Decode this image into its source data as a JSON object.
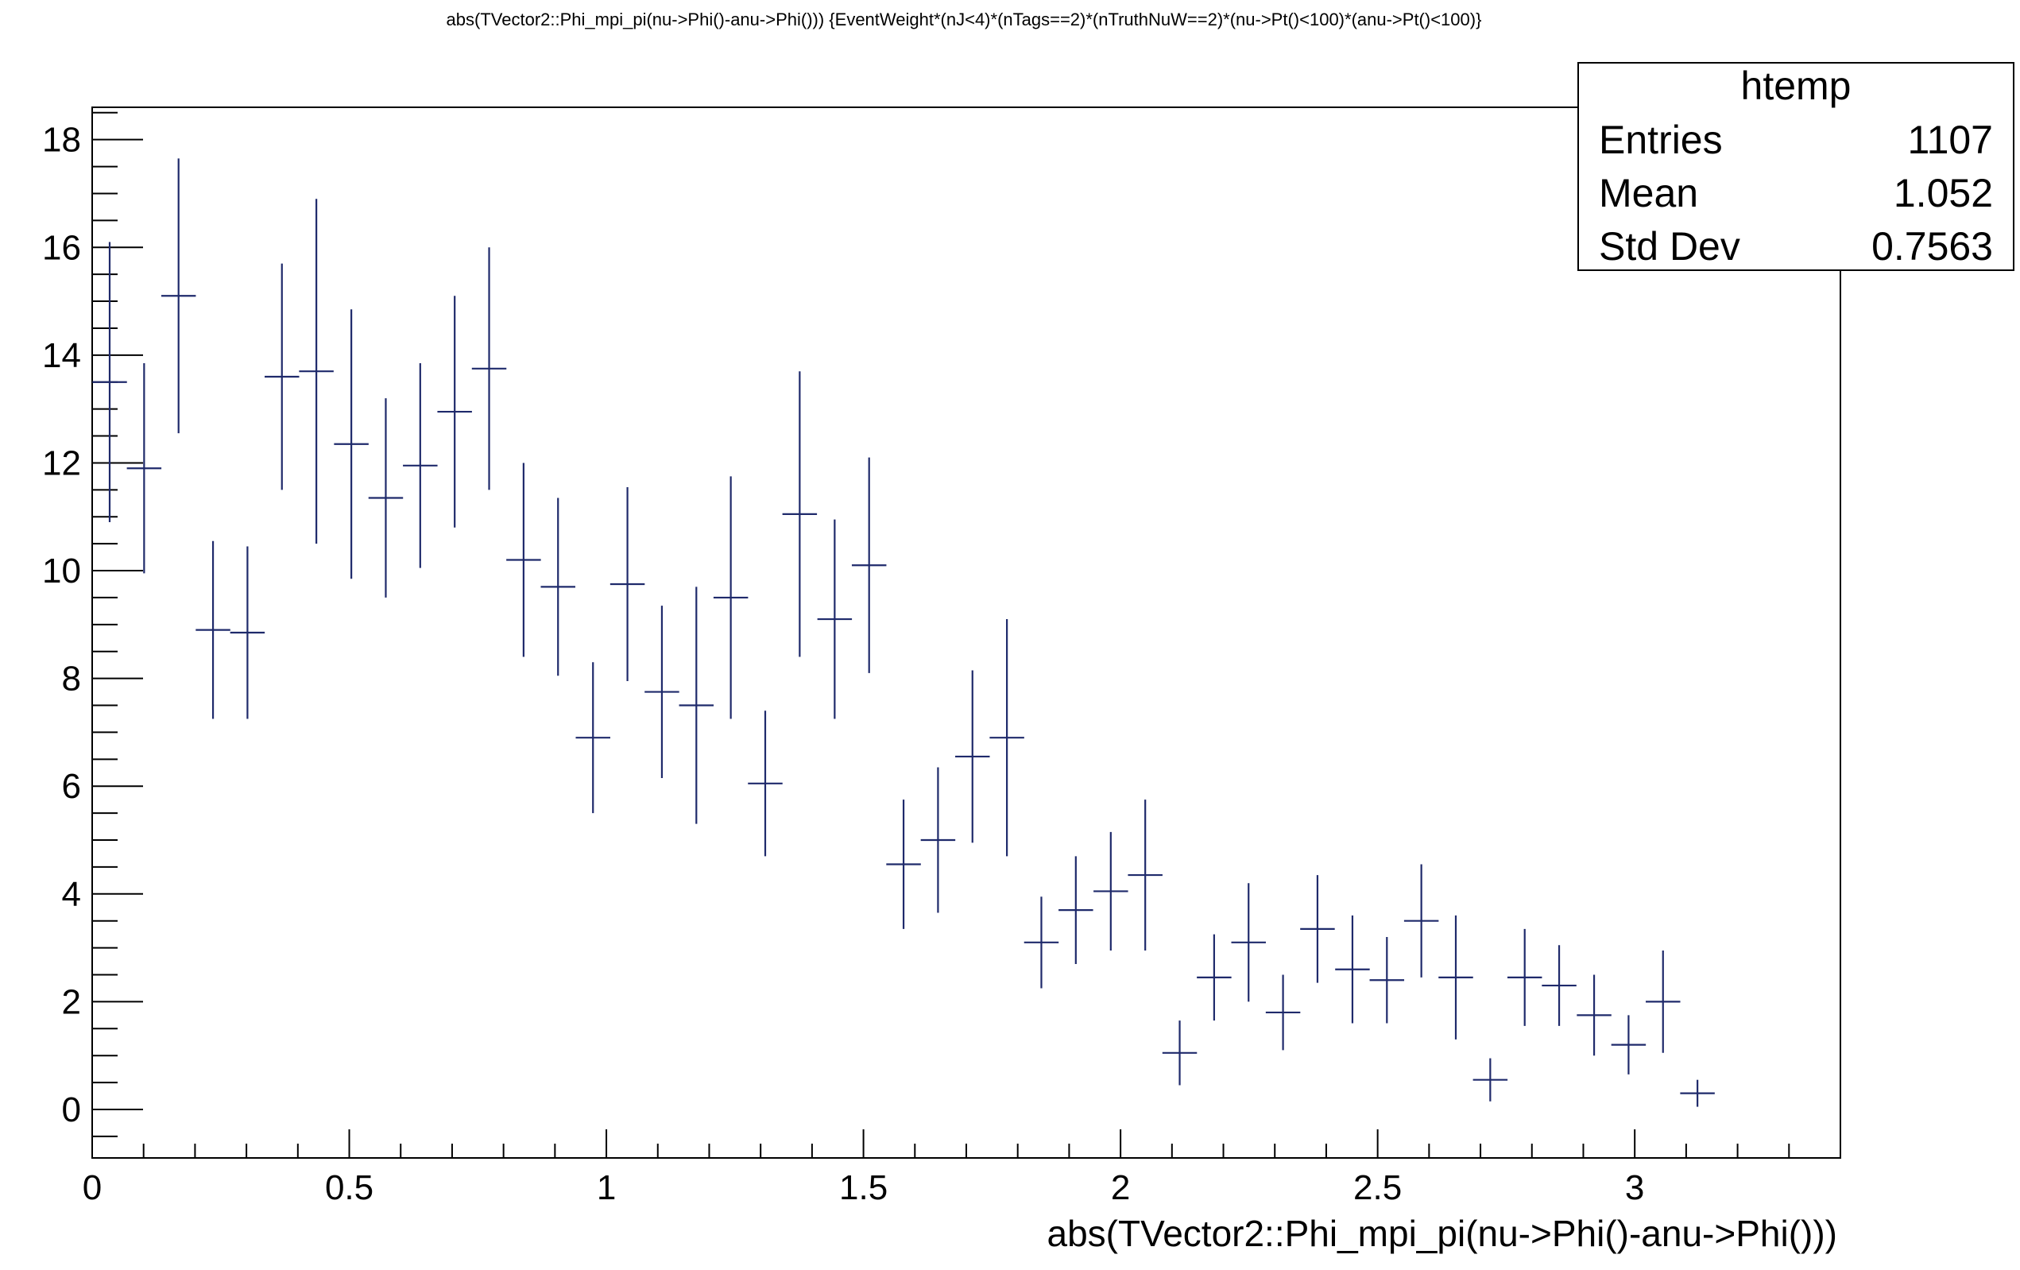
{
  "chart_data": {
    "type": "scatter",
    "title": "abs(TVector2::Phi_mpi_pi(nu->Phi()-anu->Phi())) {EventWeight*(nJ<4)*(nTags==2)*(nTruthNuW==2)*(nu->Pt()<100)*(anu->Pt()<100)}",
    "xlabel": "abs(TVector2::Phi_mpi_pi(nu->Phi()-anu->Phi()))",
    "ylabel": "",
    "xlim": [
      0,
      3.4
    ],
    "ylim": [
      -0.9,
      18.6
    ],
    "x_ticks": [
      0,
      0.5,
      1,
      1.5,
      2,
      2.5,
      3
    ],
    "x_tick_labels": [
      "0",
      "0.5",
      "1",
      "1.5",
      "2",
      "2.5",
      "3"
    ],
    "y_ticks": [
      0,
      2,
      4,
      6,
      8,
      10,
      12,
      14,
      16,
      18
    ],
    "y_tick_labels": [
      "0",
      "2",
      "4",
      "6",
      "8",
      "10",
      "12",
      "14",
      "16",
      "18"
    ],
    "series": [
      {
        "color": "#1f2a6b",
        "bin_halfwidth": 0.0336,
        "x": [
          0.034,
          0.101,
          0.168,
          0.235,
          0.302,
          0.369,
          0.436,
          0.504,
          0.571,
          0.638,
          0.705,
          0.772,
          0.839,
          0.906,
          0.974,
          1.041,
          1.108,
          1.175,
          1.242,
          1.309,
          1.376,
          1.444,
          1.511,
          1.578,
          1.645,
          1.712,
          1.779,
          1.846,
          1.913,
          1.981,
          2.048,
          2.115,
          2.182,
          2.249,
          2.316,
          2.383,
          2.451,
          2.518,
          2.585,
          2.652,
          2.719,
          2.786,
          2.853,
          2.921,
          2.988,
          3.055,
          3.122
        ],
        "y": [
          13.5,
          11.9,
          15.1,
          8.9,
          8.85,
          13.6,
          13.7,
          12.35,
          11.35,
          11.95,
          12.95,
          13.75,
          10.2,
          9.7,
          6.9,
          9.75,
          7.75,
          7.5,
          9.5,
          6.05,
          11.05,
          9.1,
          10.1,
          4.55,
          5.0,
          6.55,
          6.9,
          3.1,
          3.7,
          4.05,
          4.35,
          1.05,
          2.45,
          3.1,
          1.8,
          3.35,
          2.6,
          2.4,
          3.5,
          2.45,
          0.55,
          2.45,
          2.3,
          1.75,
          1.2,
          2.0,
          0.3
        ],
        "y_err": [
          2.6,
          1.95,
          2.55,
          1.65,
          1.6,
          2.1,
          3.2,
          2.5,
          1.85,
          1.9,
          2.15,
          2.25,
          1.8,
          1.65,
          1.4,
          1.8,
          1.6,
          2.2,
          2.25,
          1.35,
          2.65,
          1.85,
          2.0,
          1.2,
          1.35,
          1.6,
          2.2,
          0.85,
          1.0,
          1.1,
          1.4,
          0.6,
          0.8,
          1.1,
          0.7,
          1.0,
          1.0,
          0.8,
          1.05,
          1.15,
          0.4,
          0.9,
          0.75,
          0.75,
          0.55,
          0.95,
          0.25
        ]
      }
    ],
    "stats_box": {
      "name": "htemp",
      "rows": [
        {
          "label": "Entries",
          "value": "1107"
        },
        {
          "label": "Mean",
          "value": "1.052"
        },
        {
          "label": "Std Dev",
          "value": "0.7563"
        }
      ]
    },
    "grid": false,
    "legend": "none"
  }
}
